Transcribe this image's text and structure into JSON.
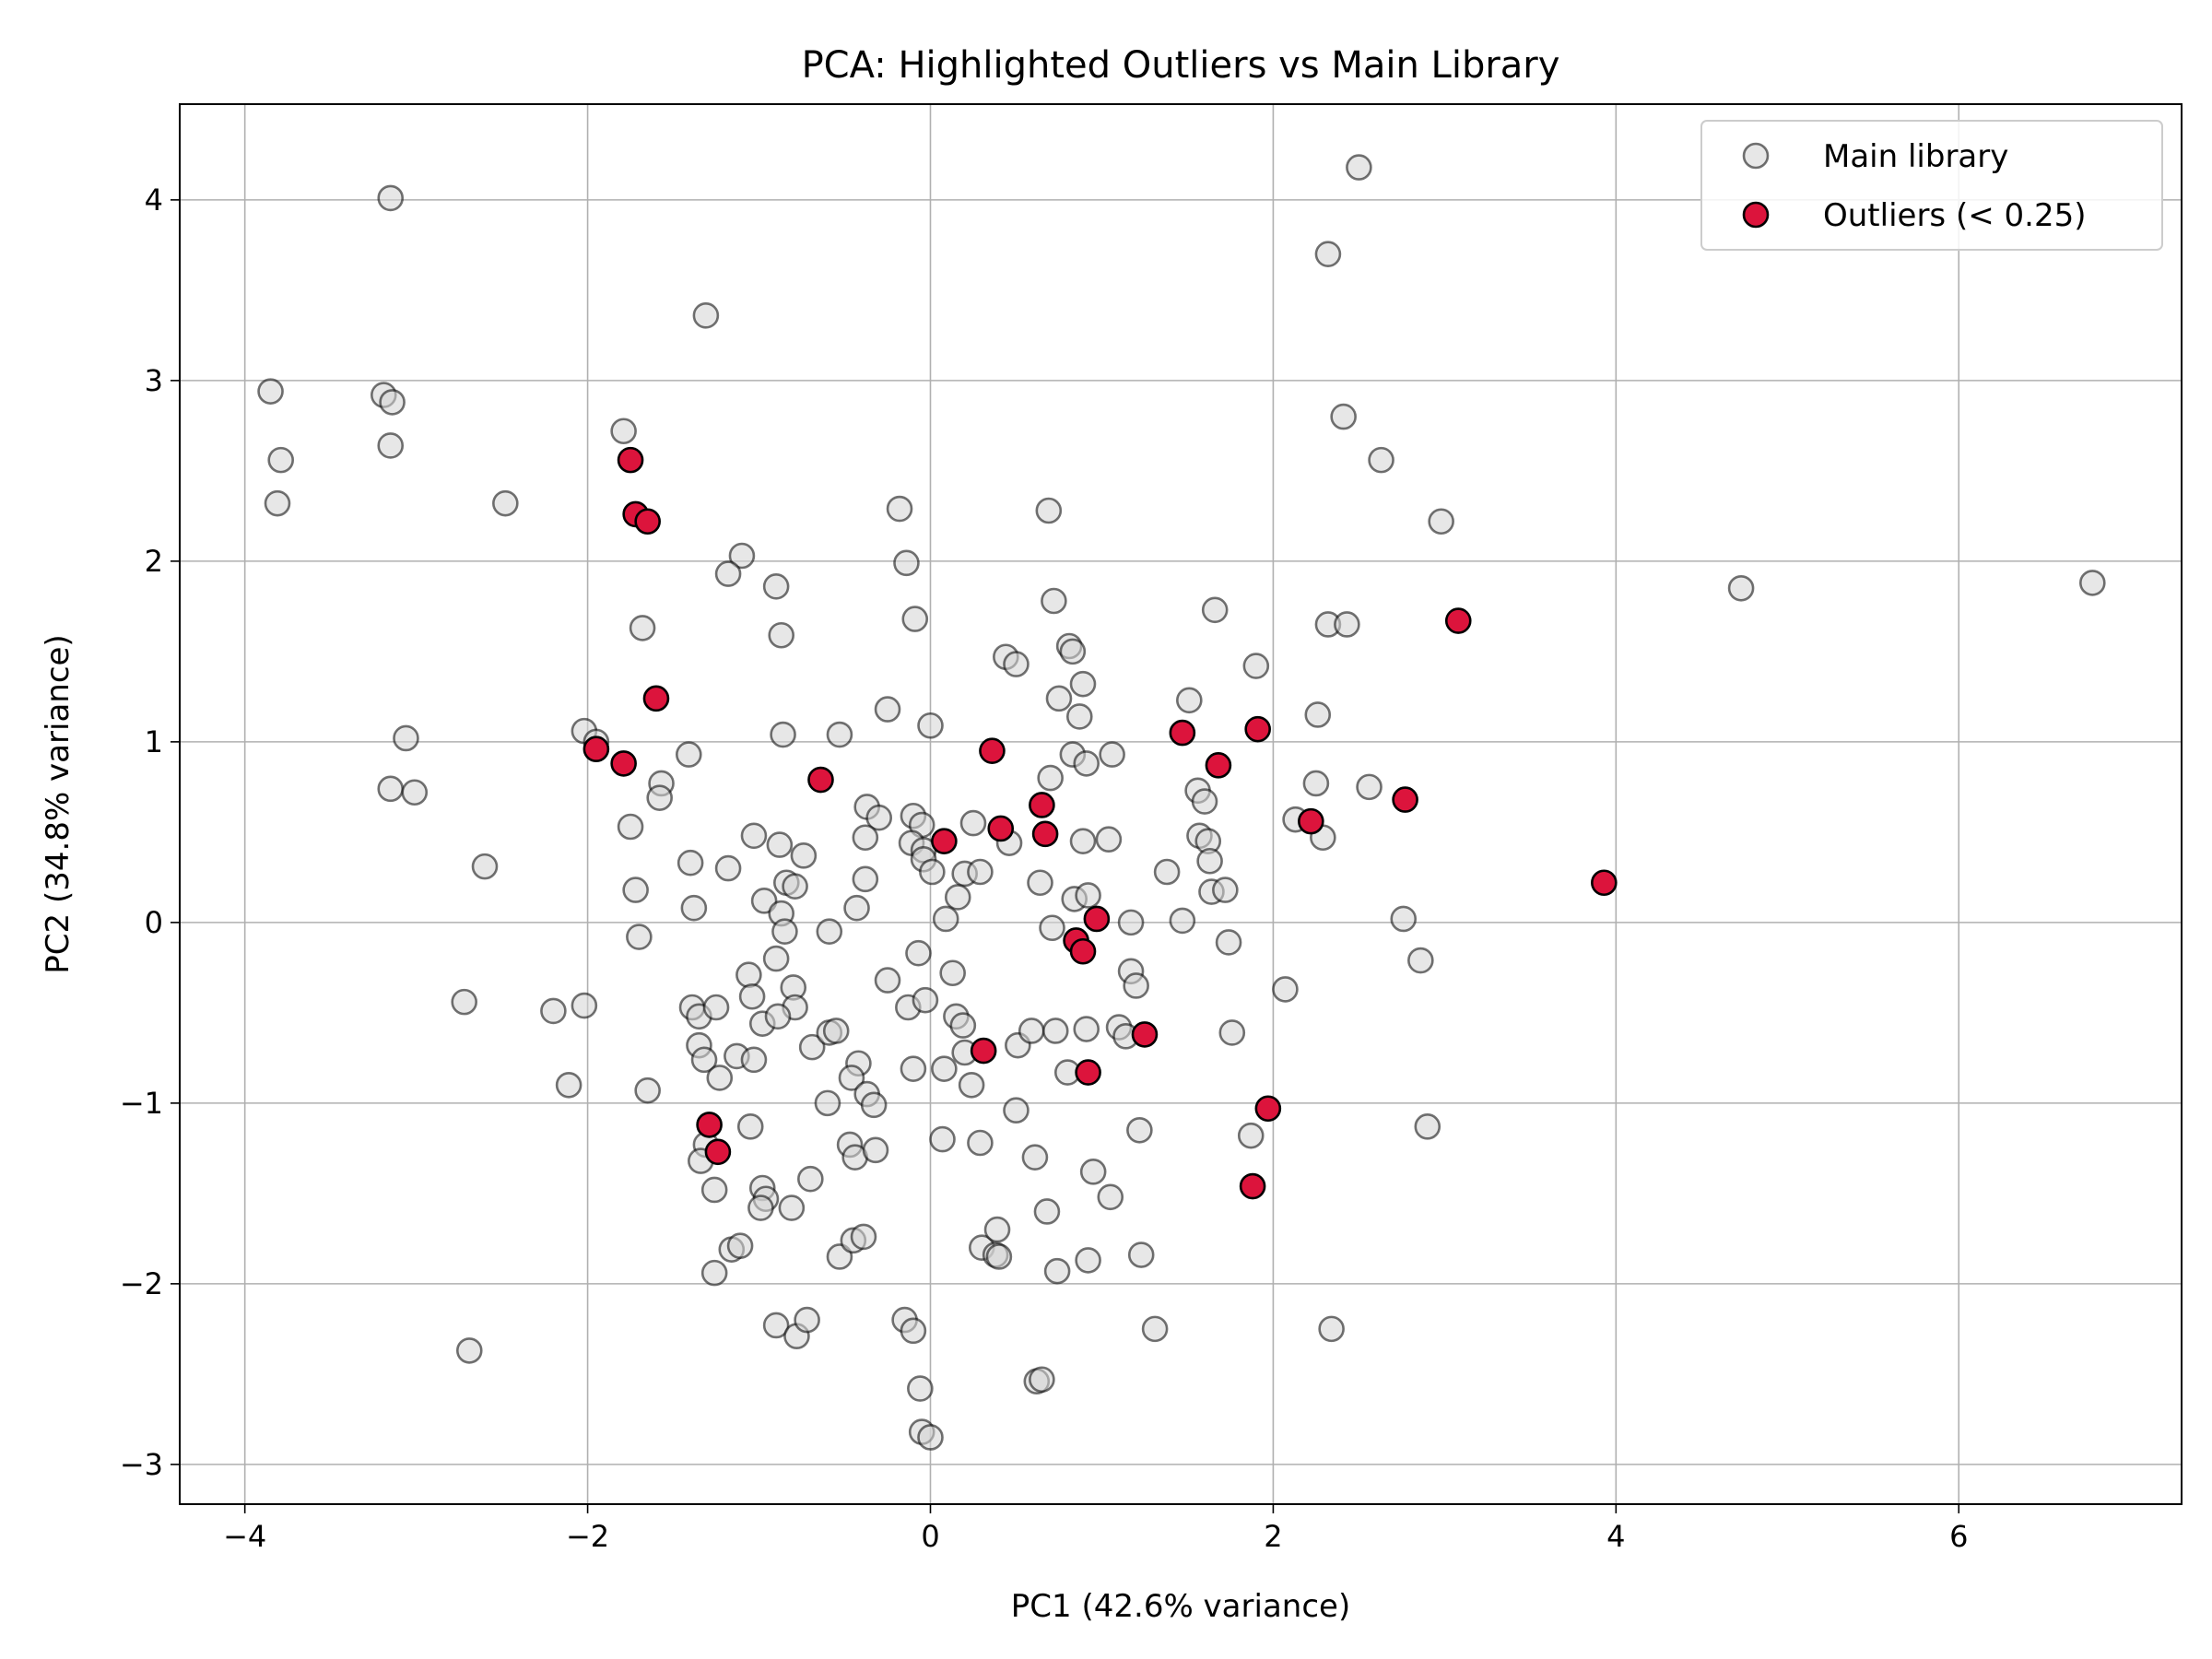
{
  "chart_data": {
    "type": "scatter",
    "title": "PCA: Highlighted Outliers vs Main Library",
    "xlabel": "PC1 (42.6% variance)",
    "ylabel": "PC2 (34.8% variance)",
    "xlim": [
      -4.38,
      7.3
    ],
    "ylim": [
      -3.22,
      4.53
    ],
    "xticks": [
      -4,
      -2,
      0,
      2,
      4,
      6
    ],
    "yticks": [
      -3,
      -2,
      -1,
      0,
      1,
      2,
      3,
      4
    ],
    "xtick_labels": [
      "−4",
      "−2",
      "0",
      "2",
      "4",
      "6"
    ],
    "ytick_labels": [
      "−3",
      "−2",
      "−1",
      "0",
      "1",
      "2",
      "3",
      "4"
    ],
    "grid": true,
    "legend_position": "top-right",
    "series": [
      {
        "name": "Main library",
        "color": "#d3d3d3",
        "edge_color": "#000000",
        "alpha": 0.55,
        "points": [
          [
            -3.15,
            4.01
          ],
          [
            2.5,
            4.18
          ],
          [
            2.32,
            3.7
          ],
          [
            -1.31,
            3.36
          ],
          [
            -3.85,
            2.94
          ],
          [
            -3.19,
            2.92
          ],
          [
            -3.14,
            2.88
          ],
          [
            2.41,
            2.8
          ],
          [
            -3.15,
            2.64
          ],
          [
            -3.79,
            2.56
          ],
          [
            2.63,
            2.56
          ],
          [
            -1.79,
            2.72
          ],
          [
            -3.81,
            2.32
          ],
          [
            -2.48,
            2.32
          ],
          [
            -0.18,
            2.29
          ],
          [
            0.69,
            2.28
          ],
          [
            2.98,
            2.22
          ],
          [
            -1.1,
            2.03
          ],
          [
            -0.14,
            1.99
          ],
          [
            -1.18,
            1.93
          ],
          [
            4.73,
            1.85
          ],
          [
            6.78,
            1.88
          ],
          [
            -0.9,
            1.86
          ],
          [
            -0.09,
            1.68
          ],
          [
            -1.68,
            1.63
          ],
          [
            0.72,
            1.78
          ],
          [
            1.66,
            1.73
          ],
          [
            2.32,
            1.65
          ],
          [
            2.43,
            1.65
          ],
          [
            -0.87,
            1.59
          ],
          [
            0.81,
            1.53
          ],
          [
            0.83,
            1.5
          ],
          [
            0.44,
            1.47
          ],
          [
            0.5,
            1.43
          ],
          [
            1.9,
            1.42
          ],
          [
            0.75,
            1.24
          ],
          [
            0.89,
            1.32
          ],
          [
            1.51,
            1.23
          ],
          [
            0.87,
            1.14
          ],
          [
            -0.25,
            1.18
          ],
          [
            2.26,
            1.15
          ],
          [
            -2.02,
            1.06
          ],
          [
            -3.06,
            1.02
          ],
          [
            -0.86,
            1.04
          ],
          [
            -0.53,
            1.04
          ],
          [
            0.0,
            1.09
          ],
          [
            -1.95,
            1.0
          ],
          [
            -1.41,
            0.93
          ],
          [
            0.83,
            0.93
          ],
          [
            0.91,
            0.88
          ],
          [
            1.06,
            0.93
          ],
          [
            -3.15,
            0.74
          ],
          [
            -3.01,
            0.72
          ],
          [
            -1.57,
            0.77
          ],
          [
            -1.58,
            0.69
          ],
          [
            0.7,
            0.8
          ],
          [
            1.56,
            0.73
          ],
          [
            2.25,
            0.77
          ],
          [
            2.56,
            0.75
          ],
          [
            1.6,
            0.67
          ],
          [
            -1.75,
            0.53
          ],
          [
            -0.37,
            0.64
          ],
          [
            -0.3,
            0.58
          ],
          [
            -0.1,
            0.59
          ],
          [
            -0.05,
            0.54
          ],
          [
            -1.03,
            0.48
          ],
          [
            0.25,
            0.55
          ],
          [
            2.13,
            0.57
          ],
          [
            2.29,
            0.47
          ],
          [
            1.57,
            0.48
          ],
          [
            1.62,
            0.45
          ],
          [
            -0.88,
            0.43
          ],
          [
            -0.74,
            0.37
          ],
          [
            -0.38,
            0.47
          ],
          [
            -0.11,
            0.44
          ],
          [
            -0.04,
            0.4
          ],
          [
            0.46,
            0.44
          ],
          [
            0.89,
            0.45
          ],
          [
            1.04,
            0.46
          ],
          [
            -2.6,
            0.31
          ],
          [
            -1.4,
            0.33
          ],
          [
            -1.18,
            0.3
          ],
          [
            -0.04,
            0.35
          ],
          [
            0.01,
            0.28
          ],
          [
            0.2,
            0.27
          ],
          [
            0.29,
            0.28
          ],
          [
            -0.38,
            0.24
          ],
          [
            1.63,
            0.34
          ],
          [
            1.38,
            0.28
          ],
          [
            -1.72,
            0.18
          ],
          [
            -0.84,
            0.22
          ],
          [
            -0.79,
            0.2
          ],
          [
            -0.97,
            0.12
          ],
          [
            -0.43,
            0.08
          ],
          [
            0.16,
            0.14
          ],
          [
            0.64,
            0.22
          ],
          [
            1.64,
            0.17
          ],
          [
            1.72,
            0.18
          ],
          [
            0.84,
            0.13
          ],
          [
            0.92,
            0.15
          ],
          [
            -1.38,
            0.08
          ],
          [
            -0.87,
            0.05
          ],
          [
            0.09,
            0.02
          ],
          [
            1.47,
            0.01
          ],
          [
            1.17,
            0.0
          ],
          [
            -1.7,
            -0.08
          ],
          [
            -0.85,
            -0.05
          ],
          [
            -0.59,
            -0.05
          ],
          [
            0.71,
            -0.03
          ],
          [
            2.76,
            0.02
          ],
          [
            -0.07,
            -0.17
          ],
          [
            1.74,
            -0.11
          ],
          [
            -0.9,
            -0.2
          ],
          [
            -1.06,
            -0.29
          ],
          [
            -0.25,
            -0.32
          ],
          [
            0.13,
            -0.28
          ],
          [
            1.17,
            -0.27
          ],
          [
            2.07,
            -0.37
          ],
          [
            2.86,
            -0.21
          ],
          [
            -2.72,
            -0.44
          ],
          [
            -2.2,
            -0.49
          ],
          [
            -2.02,
            -0.46
          ],
          [
            -1.39,
            -0.47
          ],
          [
            -1.35,
            -0.52
          ],
          [
            -1.25,
            -0.47
          ],
          [
            -1.04,
            -0.41
          ],
          [
            -0.8,
            -0.36
          ],
          [
            -0.79,
            -0.47
          ],
          [
            -0.13,
            -0.47
          ],
          [
            -0.03,
            -0.43
          ],
          [
            0.15,
            -0.52
          ],
          [
            0.19,
            -0.57
          ],
          [
            1.1,
            -0.58
          ],
          [
            1.2,
            -0.35
          ],
          [
            -1.35,
            -0.68
          ],
          [
            -1.32,
            -0.76
          ],
          [
            -1.23,
            -0.86
          ],
          [
            -1.13,
            -0.74
          ],
          [
            -1.03,
            -0.76
          ],
          [
            -0.98,
            -0.56
          ],
          [
            -0.89,
            -0.52
          ],
          [
            -0.69,
            -0.69
          ],
          [
            -0.59,
            -0.61
          ],
          [
            -0.55,
            -0.6
          ],
          [
            -0.42,
            -0.78
          ],
          [
            -0.1,
            -0.81
          ],
          [
            0.08,
            -0.81
          ],
          [
            0.2,
            -0.72
          ],
          [
            0.51,
            -0.68
          ],
          [
            0.59,
            -0.6
          ],
          [
            0.73,
            -0.6
          ],
          [
            0.8,
            -0.83
          ],
          [
            0.91,
            -0.59
          ],
          [
            1.14,
            -0.63
          ],
          [
            1.76,
            -0.61
          ],
          [
            -2.11,
            -0.9
          ],
          [
            -1.65,
            -0.93
          ],
          [
            -0.6,
            -1.0
          ],
          [
            -0.46,
            -0.86
          ],
          [
            -0.37,
            -0.95
          ],
          [
            -0.33,
            -1.01
          ],
          [
            0.24,
            -0.9
          ],
          [
            0.5,
            -1.04
          ],
          [
            -1.05,
            -1.13
          ],
          [
            -1.31,
            -1.23
          ],
          [
            -1.34,
            -1.32
          ],
          [
            -1.26,
            -1.48
          ],
          [
            -0.47,
            -1.23
          ],
          [
            -0.44,
            -1.3
          ],
          [
            0.07,
            -1.2
          ],
          [
            0.29,
            -1.22
          ],
          [
            0.61,
            -1.3
          ],
          [
            0.95,
            -1.38
          ],
          [
            1.05,
            -1.52
          ],
          [
            1.22,
            -1.15
          ],
          [
            1.87,
            -1.18
          ],
          [
            2.9,
            -1.13
          ],
          [
            -0.98,
            -1.47
          ],
          [
            -0.96,
            -1.53
          ],
          [
            -0.99,
            -1.58
          ],
          [
            -0.81,
            -1.58
          ],
          [
            -0.7,
            -1.42
          ],
          [
            -1.16,
            -1.81
          ],
          [
            -1.11,
            -1.79
          ],
          [
            -1.26,
            -1.94
          ],
          [
            -0.53,
            -1.85
          ],
          [
            -0.45,
            -1.76
          ],
          [
            -0.39,
            -1.74
          ],
          [
            0.3,
            -1.8
          ],
          [
            0.38,
            -1.84
          ],
          [
            0.39,
            -1.7
          ],
          [
            0.4,
            -1.85
          ],
          [
            0.68,
            -1.6
          ],
          [
            0.74,
            -1.93
          ],
          [
            0.92,
            -1.87
          ],
          [
            1.23,
            -1.84
          ],
          [
            -2.69,
            -2.37
          ],
          [
            -0.9,
            -2.23
          ],
          [
            -0.78,
            -2.29
          ],
          [
            -0.72,
            -2.2
          ],
          [
            -0.15,
            -2.2
          ],
          [
            -0.1,
            -2.26
          ],
          [
            -0.06,
            -2.58
          ],
          [
            -0.05,
            -2.82
          ],
          [
            0.0,
            -2.85
          ],
          [
            0.62,
            -2.54
          ],
          [
            0.65,
            -2.53
          ],
          [
            1.31,
            -2.25
          ],
          [
            2.34,
            -2.25
          ],
          [
            -0.32,
            -1.26
          ]
        ]
      },
      {
        "name": "Outliers (< 0.25)",
        "color": "#dc143c",
        "edge_color": "#000000",
        "alpha": 1.0,
        "points": [
          [
            -1.75,
            2.56
          ],
          [
            -1.72,
            2.26
          ],
          [
            -1.65,
            2.22
          ],
          [
            -1.6,
            1.24
          ],
          [
            3.08,
            1.67
          ],
          [
            -1.95,
            0.96
          ],
          [
            -1.79,
            0.88
          ],
          [
            -0.64,
            0.79
          ],
          [
            0.36,
            0.95
          ],
          [
            1.47,
            1.05
          ],
          [
            1.91,
            1.07
          ],
          [
            1.68,
            0.87
          ],
          [
            0.65,
            0.65
          ],
          [
            0.41,
            0.52
          ],
          [
            0.67,
            0.49
          ],
          [
            0.08,
            0.45
          ],
          [
            2.22,
            0.56
          ],
          [
            2.77,
            0.68
          ],
          [
            3.93,
            0.22
          ],
          [
            0.97,
            0.02
          ],
          [
            0.85,
            -0.1
          ],
          [
            0.89,
            -0.16
          ],
          [
            0.31,
            -0.71
          ],
          [
            1.25,
            -0.62
          ],
          [
            0.92,
            -0.83
          ],
          [
            1.97,
            -1.03
          ],
          [
            1.88,
            -1.46
          ],
          [
            -1.29,
            -1.12
          ],
          [
            -1.24,
            -1.27
          ]
        ]
      }
    ]
  }
}
